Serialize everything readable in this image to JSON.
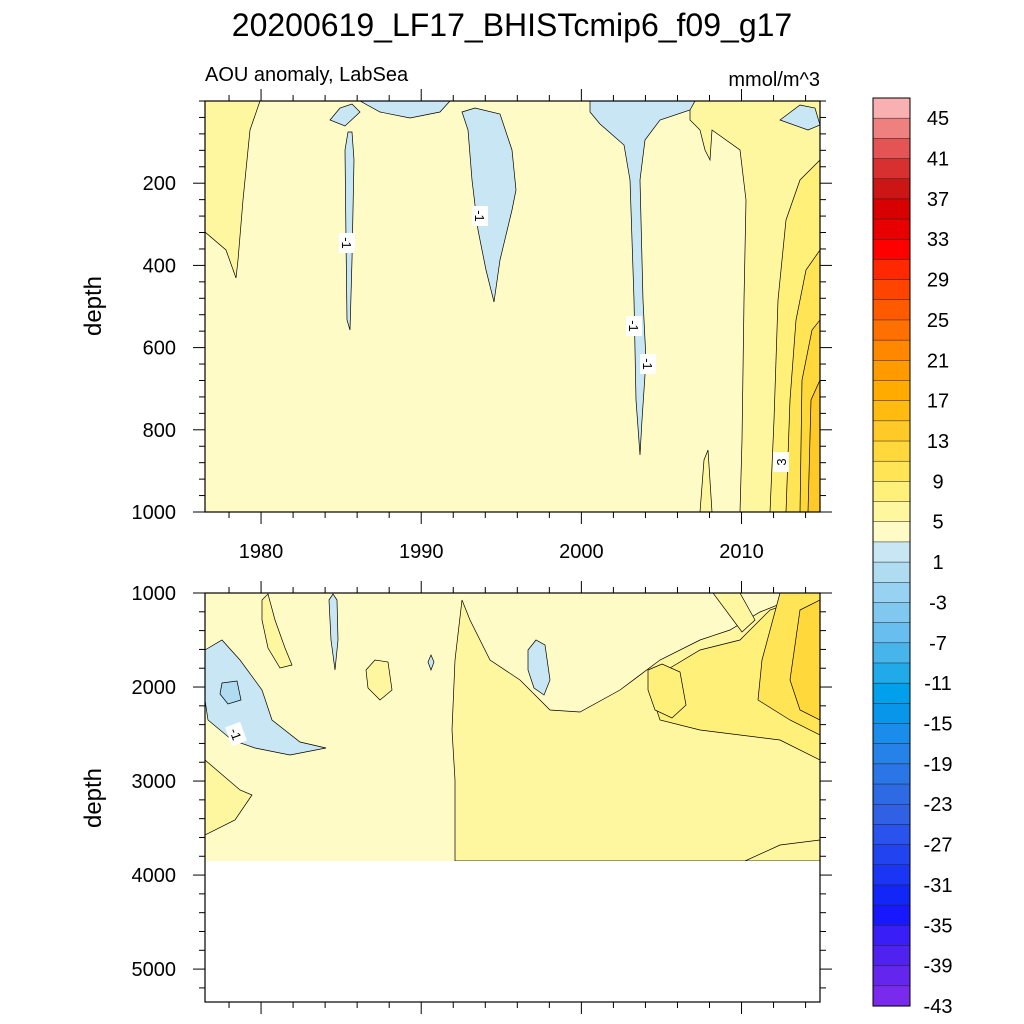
{
  "chart_data": {
    "type": "heatmap",
    "title": "20200619_LF17_BHISTcmip6_f09_g17",
    "subtitle_left": "AOU anomaly, LabSea",
    "subtitle_right": "mmol/m^3",
    "x_range": [
      1976.5,
      2014.9
    ],
    "x_ticks": [
      "1980",
      "1990",
      "2000",
      "2010"
    ],
    "panels": [
      {
        "name": "upper",
        "ylabel": "depth",
        "ylim": [
          0,
          1000
        ],
        "y_ticks": [
          "200",
          "400",
          "600",
          "800",
          "1000"
        ],
        "contour_labels": [
          "-1",
          "-1",
          "-1",
          "-1",
          "3"
        ]
      },
      {
        "name": "lower",
        "ylabel": "depth",
        "ylim": [
          1000,
          5350
        ],
        "y_ticks": [
          "1000",
          "2000",
          "3000",
          "4000",
          "5000"
        ],
        "contour_labels": [
          "-1"
        ]
      }
    ],
    "colorbar": {
      "labels": [
        "45",
        "41",
        "37",
        "33",
        "29",
        "25",
        "21",
        "17",
        "13",
        "9",
        "5",
        "1",
        "-3",
        "-7",
        "-11",
        "-15",
        "-19",
        "-23",
        "-27",
        "-31",
        "-35",
        "-39",
        "-43"
      ],
      "colors": [
        "#f8b0b0",
        "#ee8080",
        "#e45454",
        "#d83030",
        "#cc1616",
        "#d80000",
        "#e80000",
        "#ff0000",
        "#ff2800",
        "#ff4400",
        "#ff5a00",
        "#ff7000",
        "#ff8800",
        "#ff9a00",
        "#ffab00",
        "#ffbb10",
        "#ffca28",
        "#ffd83c",
        "#ffe555",
        "#fff07a",
        "#fff6a0",
        "#fffbc6",
        "#c8e6f4",
        "#b0dcf2",
        "#98d2f2",
        "#80c8f0",
        "#68beee",
        "#48b4ec",
        "#20aaea",
        "#00a0ec",
        "#0896ea",
        "#1a8cec",
        "#2482e8",
        "#2a76e6",
        "#2e6ae4",
        "#3060e4",
        "#2a52ec",
        "#2244f0",
        "#1a36f4",
        "#1226f8",
        "#1818ff",
        "#3a1ef8",
        "#5022f0",
        "#6426ee",
        "#7a2aec"
      ]
    }
  }
}
